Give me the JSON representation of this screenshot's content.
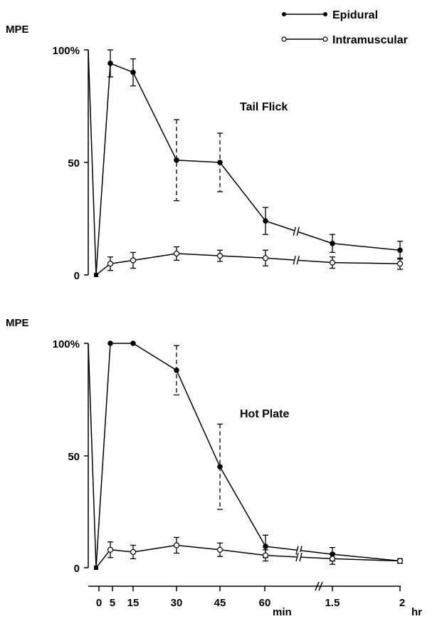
{
  "legend": {
    "placement": "top-right",
    "entries": [
      {
        "label": "Epidural",
        "marker": "filled"
      },
      {
        "label": "Intramuscular",
        "marker": "open"
      }
    ]
  },
  "chart_data": [
    {
      "type": "line",
      "title": "Tail Flick",
      "ylabel": "MPE",
      "ytick_labels": [
        "0",
        "50",
        "100%"
      ],
      "ylim": [
        0,
        100
      ],
      "x": [
        "0",
        "5",
        "15",
        "30",
        "45",
        "60",
        "1.5 hr",
        "2 hr"
      ],
      "axis_break_after": "60",
      "series": [
        {
          "name": "Epidural",
          "marker": "filled",
          "values": [
            0,
            94,
            90,
            51,
            50,
            24,
            14,
            11
          ],
          "errors": [
            0,
            6,
            6,
            18,
            13,
            6,
            4,
            4
          ]
        },
        {
          "name": "Intramuscular",
          "marker": "open",
          "values": [
            0,
            5,
            6.5,
            9.5,
            8.5,
            7.5,
            5.5,
            5
          ],
          "errors": [
            0,
            3,
            3.5,
            3,
            2.5,
            3.5,
            2.5,
            2.5
          ]
        }
      ]
    },
    {
      "type": "line",
      "title": "Hot Plate",
      "ylabel": "MPE",
      "ytick_labels": [
        "0",
        "50",
        "100%"
      ],
      "ylim": [
        0,
        100
      ],
      "x": [
        "0",
        "5",
        "15",
        "30",
        "45",
        "60",
        "1.5 hr",
        "2 hr"
      ],
      "axis_break_after": "60",
      "series": [
        {
          "name": "Epidural",
          "marker": "filled",
          "values": [
            0,
            100,
            100,
            88,
            45,
            9.5,
            6,
            3
          ],
          "errors": [
            0,
            0,
            0,
            11,
            19,
            5,
            3,
            1
          ]
        },
        {
          "name": "Intramuscular",
          "marker": "open",
          "values": [
            0,
            8,
            7,
            10,
            8,
            5.5,
            4,
            3
          ],
          "errors": [
            0,
            3.5,
            3,
            3.5,
            3,
            2.5,
            2.5,
            1
          ]
        }
      ]
    }
  ],
  "x_axis": {
    "tick_labels": [
      "0",
      "5",
      "15",
      "30",
      "45",
      "60",
      "1.5",
      "2"
    ],
    "unit_min": "min",
    "unit_hr": "hr"
  }
}
